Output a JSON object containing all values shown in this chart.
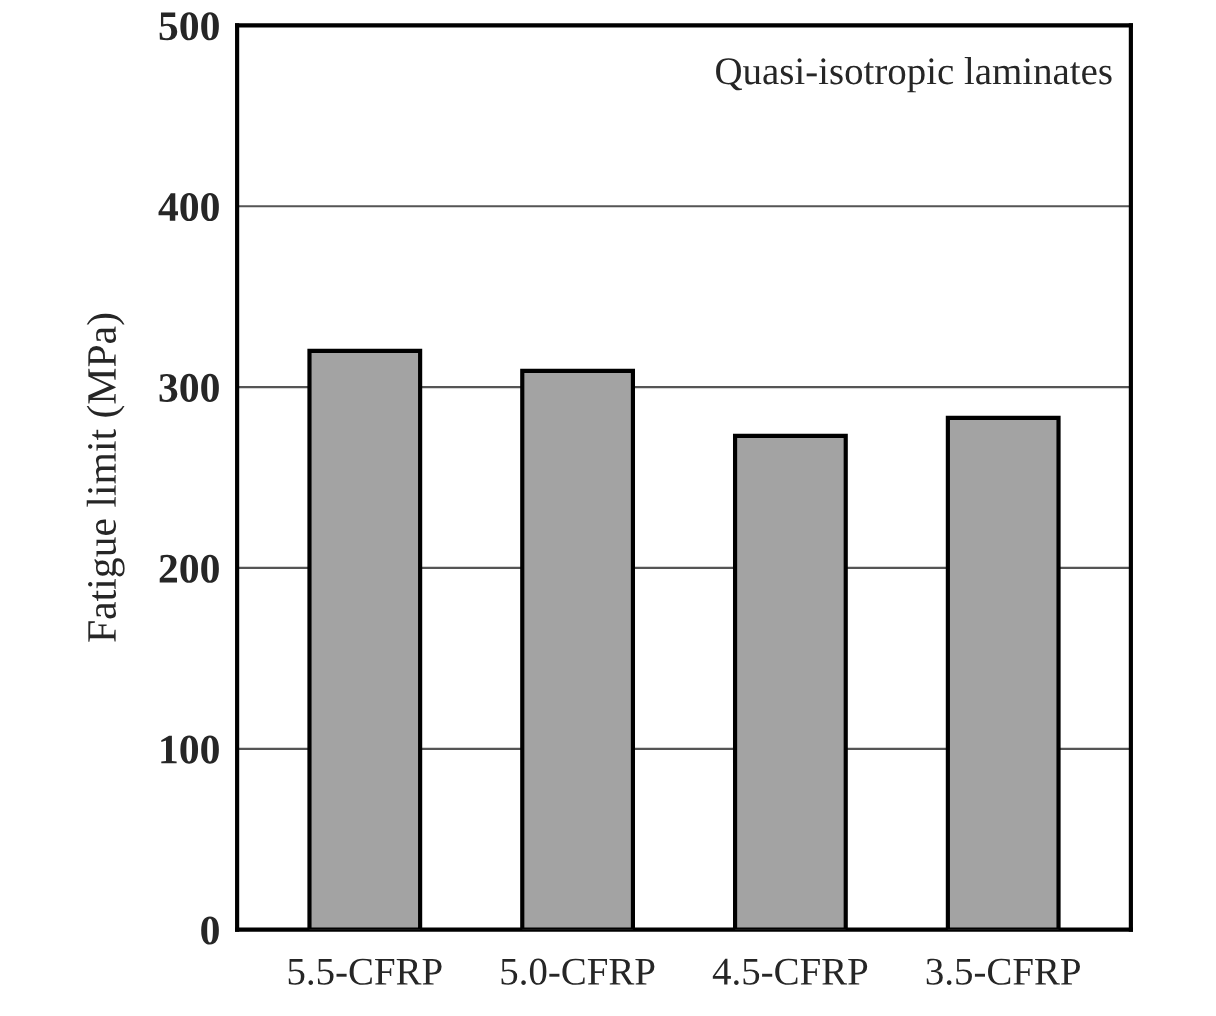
{
  "chart_data": {
    "type": "bar",
    "ylabel": "Fatigue limit (MPa)",
    "categories": [
      "5.5-CFRP",
      "5.0-CFRP",
      "4.5-CFRP",
      "3.5-CFRP"
    ],
    "values": [
      320,
      309,
      273,
      283
    ],
    "color": "#a3a3a3",
    "ylim": [
      0,
      500
    ],
    "yticks": [
      0,
      100,
      200,
      300,
      400,
      500
    ],
    "grid": "y",
    "annotations": [
      "Quasi-isotropic laminates"
    ]
  }
}
